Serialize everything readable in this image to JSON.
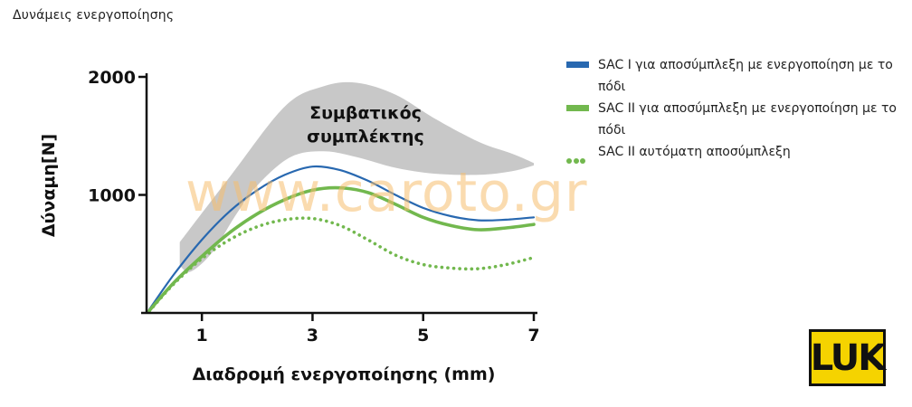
{
  "title": "Δυνάμεις ενεργοποίησης",
  "watermark": "www.caroto.gr",
  "logo_text": "LUK",
  "legend": [
    {
      "label": "SAC I για αποσύμπλεξη με ενεργοποίηση με το πόδι",
      "style": "solid",
      "color": "#2868b0"
    },
    {
      "label": "SAC II για αποσύμπλεξη με ενεργοποίηση με το πόδι",
      "style": "solid",
      "color": "#72b84e"
    },
    {
      "label": "SAC II αυτόματη αποσύμπλεξη",
      "style": "dotted",
      "color": "#72b84e"
    }
  ],
  "chart_data": {
    "type": "line",
    "xlabel": "Διαδρομή ενεργοποίησης (mm)",
    "ylabel": "Δύναμη[N]",
    "xlim": [
      0,
      7
    ],
    "ylim": [
      0,
      2000
    ],
    "x_ticks": [
      1,
      3,
      5,
      7
    ],
    "y_ticks": [
      1000,
      2000
    ],
    "grid": false,
    "band": {
      "label_line1": "Συμβατικός",
      "label_line2": "συμπλέκτης",
      "color": "#c8c8c8",
      "upper": [
        [
          0.6,
          600
        ],
        [
          1.5,
          1150
        ],
        [
          2.5,
          1750
        ],
        [
          3.2,
          1920
        ],
        [
          3.8,
          1950
        ],
        [
          4.5,
          1850
        ],
        [
          5.2,
          1650
        ],
        [
          6.0,
          1450
        ],
        [
          6.6,
          1350
        ],
        [
          7.0,
          1270
        ]
      ],
      "lower": [
        [
          7.0,
          1250
        ],
        [
          6.6,
          1200
        ],
        [
          6.0,
          1170
        ],
        [
          5.2,
          1180
        ],
        [
          4.5,
          1230
        ],
        [
          3.8,
          1320
        ],
        [
          3.2,
          1370
        ],
        [
          2.6,
          1320
        ],
        [
          2.0,
          1080
        ],
        [
          1.6,
          820
        ],
        [
          1.2,
          520
        ],
        [
          0.8,
          350
        ],
        [
          0.6,
          400
        ]
      ]
    },
    "series": [
      {
        "name": "SAC I για αποσύμπλεξη με ενεργοποίηση με το πόδι",
        "color": "#2868b0",
        "style": "solid",
        "width": 2.2,
        "points": [
          [
            0.05,
            30
          ],
          [
            0.5,
            330
          ],
          [
            1.0,
            620
          ],
          [
            1.5,
            860
          ],
          [
            2.0,
            1040
          ],
          [
            2.5,
            1170
          ],
          [
            3.0,
            1240
          ],
          [
            3.5,
            1210
          ],
          [
            4.0,
            1120
          ],
          [
            4.5,
            1000
          ],
          [
            5.0,
            890
          ],
          [
            5.5,
            820
          ],
          [
            6.0,
            785
          ],
          [
            6.5,
            790
          ],
          [
            7.0,
            810
          ]
        ]
      },
      {
        "name": "SAC II για αποσύμπλεξη με ενεργοποίηση με το πόδι",
        "color": "#72b84e",
        "style": "solid",
        "width": 3.6,
        "points": [
          [
            0.05,
            20
          ],
          [
            0.5,
            260
          ],
          [
            1.0,
            480
          ],
          [
            1.5,
            680
          ],
          [
            2.0,
            840
          ],
          [
            2.5,
            960
          ],
          [
            3.0,
            1040
          ],
          [
            3.5,
            1060
          ],
          [
            4.0,
            1020
          ],
          [
            4.5,
            920
          ],
          [
            5.0,
            810
          ],
          [
            5.5,
            740
          ],
          [
            6.0,
            705
          ],
          [
            6.5,
            720
          ],
          [
            7.0,
            750
          ]
        ]
      },
      {
        "name": "SAC II αυτόματη αποσύμπλεξη",
        "color": "#72b84e",
        "style": "dotted",
        "width": 3.6,
        "points": [
          [
            0.05,
            15
          ],
          [
            0.5,
            250
          ],
          [
            1.0,
            460
          ],
          [
            1.5,
            620
          ],
          [
            2.0,
            730
          ],
          [
            2.5,
            790
          ],
          [
            3.0,
            800
          ],
          [
            3.5,
            740
          ],
          [
            4.0,
            620
          ],
          [
            4.5,
            490
          ],
          [
            5.0,
            410
          ],
          [
            5.5,
            380
          ],
          [
            6.0,
            375
          ],
          [
            6.5,
            410
          ],
          [
            7.0,
            470
          ]
        ]
      }
    ]
  }
}
